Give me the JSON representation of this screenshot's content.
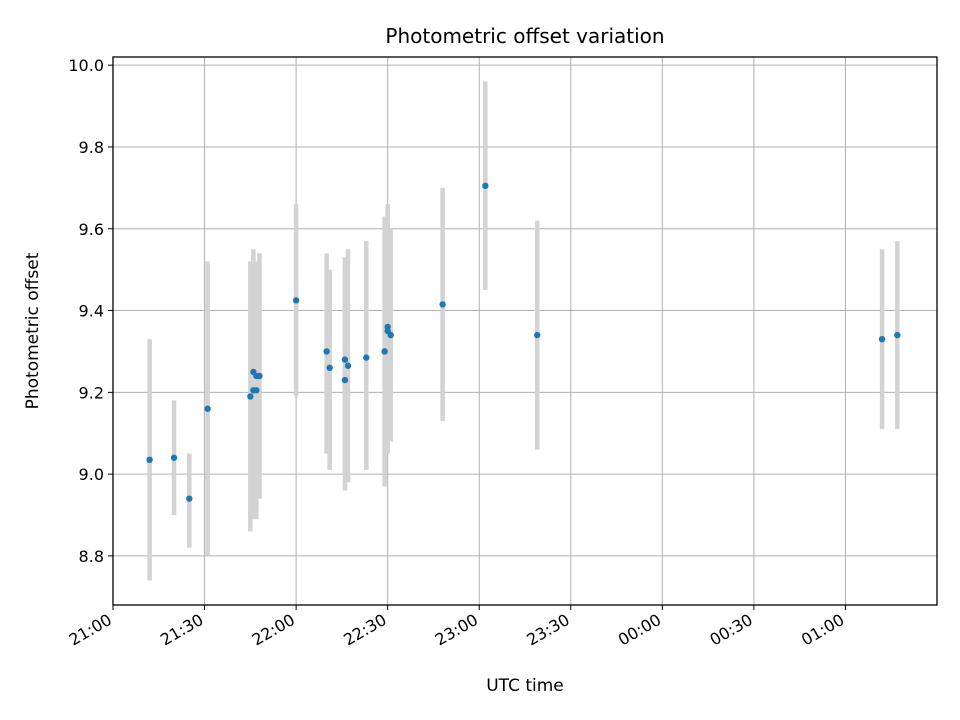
{
  "chart_data": {
    "type": "scatter",
    "title": "Photometric offset variation",
    "xlabel": "UTC time",
    "ylabel": "Photometric offset",
    "x_axis": "time",
    "xlim": [
      "21:00",
      "01:30"
    ],
    "ylim": [
      8.68,
      10.02
    ],
    "grid": true,
    "x_tick_labels": [
      "21:00",
      "21:30",
      "22:00",
      "22:30",
      "23:00",
      "23:30",
      "00:00",
      "00:30",
      "01:00"
    ],
    "y_tick_labels": [
      "8.8",
      "9.0",
      "9.2",
      "9.4",
      "9.6",
      "9.8",
      "10.0"
    ],
    "point_color": "#1f77b4",
    "error_color": "#d3d3d3",
    "points": [
      {
        "x": "21:12",
        "y": 9.035,
        "yerr_low": 8.74,
        "yerr_high": 9.33
      },
      {
        "x": "21:20",
        "y": 9.04,
        "yerr_low": 8.9,
        "yerr_high": 9.18
      },
      {
        "x": "21:25",
        "y": 8.94,
        "yerr_low": 8.82,
        "yerr_high": 9.05
      },
      {
        "x": "21:31",
        "y": 9.16,
        "yerr_low": 8.8,
        "yerr_high": 9.52
      },
      {
        "x": "21:45",
        "y": 9.19,
        "yerr_low": 8.86,
        "yerr_high": 9.52
      },
      {
        "x": "21:46",
        "y": 9.205,
        "yerr_low": 8.89,
        "yerr_high": 9.55
      },
      {
        "x": "21:46",
        "y": 9.25,
        "yerr_low": 8.96,
        "yerr_high": 9.53
      },
      {
        "x": "21:47",
        "y": 9.205,
        "yerr_low": 8.89,
        "yerr_high": 9.5
      },
      {
        "x": "21:47",
        "y": 9.24,
        "yerr_low": 8.96,
        "yerr_high": 9.52
      },
      {
        "x": "21:48",
        "y": 9.24,
        "yerr_low": 8.94,
        "yerr_high": 9.54
      },
      {
        "x": "22:00",
        "y": 9.425,
        "yerr_low": 9.19,
        "yerr_high": 9.66
      },
      {
        "x": "22:10",
        "y": 9.3,
        "yerr_low": 9.05,
        "yerr_high": 9.54
      },
      {
        "x": "22:11",
        "y": 9.26,
        "yerr_low": 9.01,
        "yerr_high": 9.5
      },
      {
        "x": "22:16",
        "y": 9.28,
        "yerr_low": 9.0,
        "yerr_high": 9.53
      },
      {
        "x": "22:16",
        "y": 9.23,
        "yerr_low": 8.96,
        "yerr_high": 9.51
      },
      {
        "x": "22:17",
        "y": 9.265,
        "yerr_low": 8.98,
        "yerr_high": 9.55
      },
      {
        "x": "22:23",
        "y": 9.285,
        "yerr_low": 9.01,
        "yerr_high": 9.57
      },
      {
        "x": "22:29",
        "y": 9.3,
        "yerr_low": 8.97,
        "yerr_high": 9.63
      },
      {
        "x": "22:30",
        "y": 9.36,
        "yerr_low": 9.05,
        "yerr_high": 9.66
      },
      {
        "x": "22:30",
        "y": 9.35,
        "yerr_low": 9.07,
        "yerr_high": 9.63
      },
      {
        "x": "22:31",
        "y": 9.34,
        "yerr_low": 9.08,
        "yerr_high": 9.6
      },
      {
        "x": "22:48",
        "y": 9.415,
        "yerr_low": 9.13,
        "yerr_high": 9.7
      },
      {
        "x": "23:02",
        "y": 9.705,
        "yerr_low": 9.45,
        "yerr_high": 9.96
      },
      {
        "x": "23:19",
        "y": 9.34,
        "yerr_low": 9.06,
        "yerr_high": 9.62
      },
      {
        "x": "01:12",
        "y": 9.33,
        "yerr_low": 9.11,
        "yerr_high": 9.55
      },
      {
        "x": "01:17",
        "y": 9.34,
        "yerr_low": 9.11,
        "yerr_high": 9.57
      }
    ]
  }
}
